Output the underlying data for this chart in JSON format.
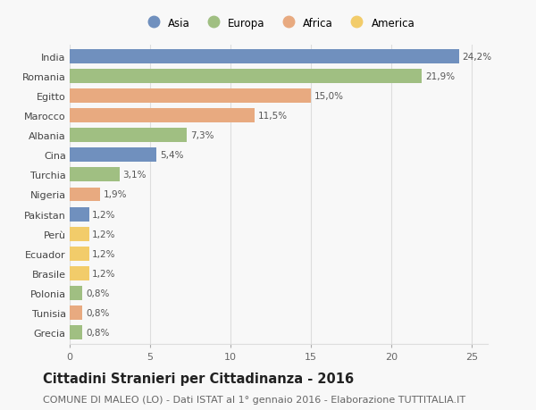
{
  "countries": [
    "India",
    "Romania",
    "Egitto",
    "Marocco",
    "Albania",
    "Cina",
    "Turchia",
    "Nigeria",
    "Pakistan",
    "Perù",
    "Ecuador",
    "Brasile",
    "Polonia",
    "Tunisia",
    "Grecia"
  ],
  "values": [
    24.2,
    21.9,
    15.0,
    11.5,
    7.3,
    5.4,
    3.1,
    1.9,
    1.2,
    1.2,
    1.2,
    1.2,
    0.8,
    0.8,
    0.8
  ],
  "labels": [
    "24,2%",
    "21,9%",
    "15,0%",
    "11,5%",
    "7,3%",
    "5,4%",
    "3,1%",
    "1,9%",
    "1,2%",
    "1,2%",
    "1,2%",
    "1,2%",
    "0,8%",
    "0,8%",
    "0,8%"
  ],
  "continents": [
    "Asia",
    "Europa",
    "Africa",
    "Africa",
    "Europa",
    "Asia",
    "Europa",
    "Africa",
    "Asia",
    "America",
    "America",
    "America",
    "Europa",
    "Africa",
    "Europa"
  ],
  "colors": {
    "Asia": "#7090be",
    "Europa": "#a0bf82",
    "Africa": "#e8aa80",
    "America": "#f2cc6a"
  },
  "legend_order": [
    "Asia",
    "Europa",
    "Africa",
    "America"
  ],
  "title": "Cittadini Stranieri per Cittadinanza - 2016",
  "subtitle": "COMUNE DI MALEO (LO) - Dati ISTAT al 1° gennaio 2016 - Elaborazione TUTTITALIA.IT",
  "xlim": [
    0,
    26
  ],
  "xticks": [
    0,
    5,
    10,
    15,
    20,
    25
  ],
  "background_color": "#f8f8f8",
  "bar_height": 0.72,
  "grid_color": "#dddddd",
  "title_fontsize": 10.5,
  "subtitle_fontsize": 8,
  "label_fontsize": 7.5,
  "ytick_fontsize": 8,
  "xtick_fontsize": 8,
  "legend_fontsize": 8.5
}
